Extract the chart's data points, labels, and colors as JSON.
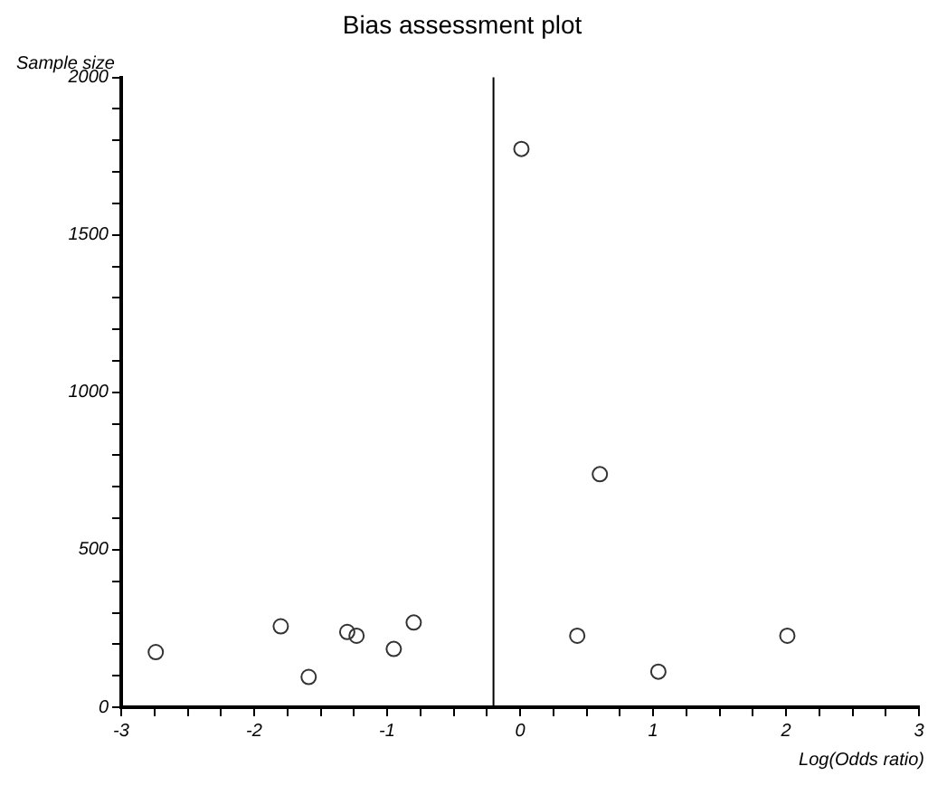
{
  "chart_data": {
    "type": "scatter",
    "title": "Bias assessment plot",
    "xlabel": "Log(Odds ratio)",
    "ylabel": "Sample size",
    "x": [
      -2.74,
      -1.8,
      -1.59,
      -1.3,
      -1.23,
      -0.95,
      -0.8,
      0.01,
      0.43,
      0.6,
      1.04,
      2.01
    ],
    "values": [
      175,
      257,
      96,
      239,
      227,
      185,
      269,
      1773,
      227,
      740,
      113,
      227
    ],
    "color": "#333333",
    "marker": "circle",
    "grid": false,
    "legend": false,
    "xlim": [
      -3,
      3
    ],
    "ylim": [
      0,
      2000
    ],
    "xticks": [
      -3,
      {
        "value": -2.75,
        "label": null
      },
      {
        "value": -2.5,
        "label": null
      },
      {
        "value": -2.25,
        "label": null
      },
      -2,
      {
        "value": -1.75,
        "label": null
      },
      {
        "value": -1.5,
        "label": null
      },
      {
        "value": -1.25,
        "label": null
      },
      -1,
      {
        "value": -0.75,
        "label": null
      },
      {
        "value": -0.5,
        "label": null
      },
      {
        "value": -0.25,
        "label": null
      },
      0,
      {
        "value": 0.25,
        "label": null
      },
      {
        "value": 0.5,
        "label": null
      },
      {
        "value": 0.75,
        "label": null
      },
      1,
      {
        "value": 1.25,
        "label": null
      },
      {
        "value": 1.5,
        "label": null
      },
      {
        "value": 1.75,
        "label": null
      },
      2,
      {
        "value": 2.25,
        "label": null
      },
      {
        "value": 2.5,
        "label": null
      },
      {
        "value": 2.75,
        "label": null
      },
      3
    ],
    "yticks": [
      0,
      {
        "value": 100,
        "label": null
      },
      {
        "value": 200,
        "label": null
      },
      {
        "value": 300,
        "label": null
      },
      {
        "value": 400,
        "label": null
      },
      500,
      {
        "value": 600,
        "label": null
      },
      {
        "value": 700,
        "label": null
      },
      {
        "value": 800,
        "label": null
      },
      {
        "value": 900,
        "label": null
      },
      1000,
      {
        "value": 1100,
        "label": null
      },
      {
        "value": 1200,
        "label": null
      },
      {
        "value": 1300,
        "label": null
      },
      {
        "value": 1400,
        "label": null
      },
      1500,
      {
        "value": 1600,
        "label": null
      },
      {
        "value": 1700,
        "label": null
      },
      {
        "value": 1800,
        "label": null
      },
      {
        "value": 1900,
        "label": null
      },
      2000
    ],
    "ref_lines": [
      {
        "axis": "x",
        "value": -0.2,
        "color": "#000000"
      }
    ]
  }
}
